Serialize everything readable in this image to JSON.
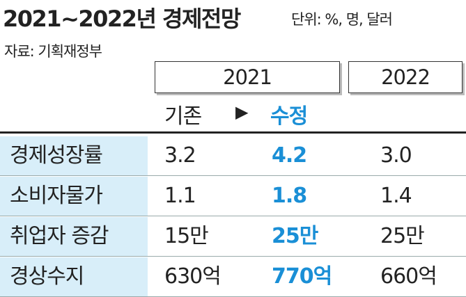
{
  "header": {
    "title": "2021~2022년 경제전망",
    "unit": "단위: %, 명, 달러",
    "source": "자료: 기획재정부"
  },
  "table": {
    "years": [
      "2021",
      "2022"
    ],
    "subheaders": [
      "기존",
      "▶",
      "수정"
    ],
    "rows": [
      [
        "경제성장률",
        "3.2",
        "4.2",
        "3.0"
      ],
      [
        "소비자물가",
        "1.1",
        "1.8",
        "1.4"
      ],
      [
        "취업자 증감",
        "15만",
        "25만",
        "25만"
      ],
      [
        "경상수지",
        "630억",
        "770억",
        "660억"
      ]
    ]
  }
}
